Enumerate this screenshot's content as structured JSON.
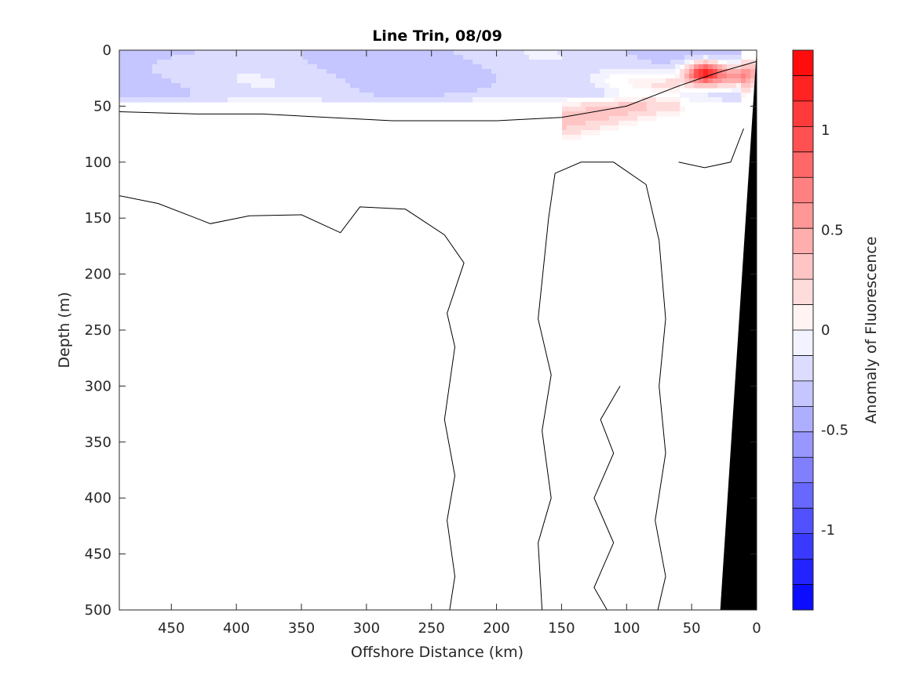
{
  "chart_data": {
    "type": "heatmap",
    "title": "Line Trin, 08/09",
    "xlabel": "Offshore Distance (km)",
    "ylabel": "Depth (m)",
    "xlim": [
      490,
      0
    ],
    "ylim": [
      0,
      500
    ],
    "x_reversed": true,
    "y_reversed": true,
    "x_ticks": [
      450,
      400,
      350,
      300,
      250,
      200,
      150,
      100,
      50,
      0
    ],
    "y_ticks": [
      0,
      50,
      100,
      150,
      200,
      250,
      300,
      350,
      400,
      450,
      500
    ],
    "colorbar": {
      "label": "Anomaly of Fluorescence",
      "clim": [
        -1.4,
        1.4
      ],
      "ticks": [
        1,
        0.5,
        0,
        -0.5,
        -1
      ],
      "tick_labels": [
        "1",
        "0.5",
        "0",
        "-0.5",
        "-1"
      ],
      "levels": 22,
      "low_color": "#0000ff",
      "mid_color": "#ffffff",
      "high_color": "#ff0000"
    },
    "field_features": [
      {
        "feature": "negative surface layer",
        "x_range": [
          490,
          5
        ],
        "depth_range": [
          0,
          55
        ],
        "value": -0.3
      },
      {
        "feature": "positive subsurface layer",
        "x_range": [
          490,
          100
        ],
        "depth_range": [
          55,
          100
        ],
        "value": 0.3
      },
      {
        "feature": "positive maximum",
        "x": 40,
        "depth": 20,
        "value": 1.3
      }
    ],
    "zero_contour_lines": [
      [
        [
          490,
          55
        ],
        [
          430,
          57
        ],
        [
          380,
          57
        ],
        [
          330,
          60
        ],
        [
          280,
          63
        ],
        [
          200,
          63
        ],
        [
          150,
          60
        ],
        [
          100,
          50
        ],
        [
          60,
          32
        ],
        [
          30,
          20
        ],
        [
          0,
          10
        ]
      ],
      [
        [
          490,
          130
        ],
        [
          460,
          137
        ],
        [
          420,
          155
        ],
        [
          390,
          148
        ],
        [
          350,
          147
        ],
        [
          320,
          163
        ],
        [
          305,
          140
        ],
        [
          270,
          142
        ],
        [
          240,
          165
        ],
        [
          225,
          190
        ],
        [
          238,
          235
        ],
        [
          232,
          265
        ],
        [
          240,
          330
        ],
        [
          232,
          380
        ],
        [
          238,
          420
        ],
        [
          232,
          470
        ],
        [
          236,
          500
        ]
      ],
      [
        [
          165,
          500
        ],
        [
          168,
          440
        ],
        [
          158,
          400
        ],
        [
          165,
          340
        ],
        [
          158,
          290
        ],
        [
          168,
          240
        ],
        [
          160,
          150
        ],
        [
          155,
          110
        ]
      ],
      [
        [
          155,
          110
        ],
        [
          135,
          100
        ],
        [
          110,
          100
        ],
        [
          85,
          120
        ],
        [
          75,
          170
        ]
      ],
      [
        [
          75,
          170
        ],
        [
          70,
          240
        ],
        [
          75,
          300
        ],
        [
          70,
          360
        ],
        [
          78,
          420
        ],
        [
          70,
          470
        ],
        [
          76,
          500
        ]
      ],
      [
        [
          60,
          100
        ],
        [
          40,
          105
        ],
        [
          20,
          100
        ],
        [
          10,
          70
        ]
      ],
      [
        [
          105,
          300
        ],
        [
          120,
          330
        ],
        [
          110,
          360
        ],
        [
          125,
          400
        ],
        [
          110,
          440
        ],
        [
          125,
          480
        ],
        [
          115,
          500
        ]
      ]
    ],
    "land_mask": {
      "x_top": 0,
      "x_bottom": 28,
      "depth_top": 0,
      "depth_bottom": 500,
      "color": "#000000"
    }
  }
}
